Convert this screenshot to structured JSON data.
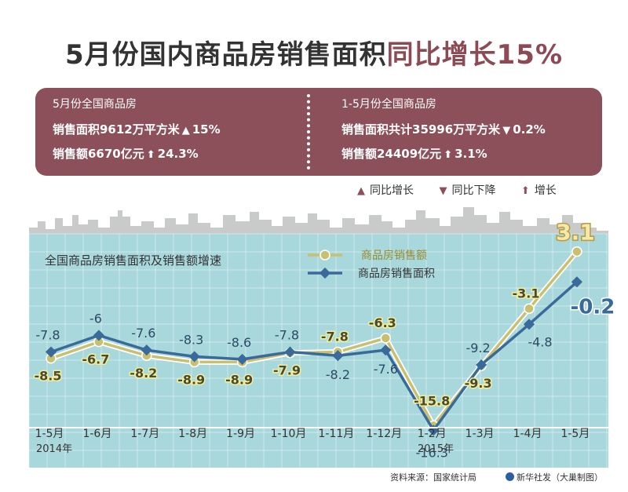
{
  "title": {
    "main": "5月份国内商品房销售面积",
    "highlight": "同比增长15%"
  },
  "stats": {
    "left": {
      "sub": "5月份全国商品房",
      "area_label": "销售面积9612万平方米",
      "area_change": "15%",
      "sales_label": "销售额6670亿元",
      "sales_change": "24.3%"
    },
    "right": {
      "sub": "1-5月份全国商品房",
      "area_label": "销售面积共计35996万平方米",
      "area_change": "0.2%",
      "sales_label": "销售额24409亿元",
      "sales_change": "3.1%"
    }
  },
  "legend_top": {
    "up": "同比增长",
    "down": "同比下降",
    "increase": "增长"
  },
  "chart_data": {
    "type": "line",
    "title": "全国商品房销售面积及销售额增速",
    "categories": [
      "1-5月",
      "1-6月",
      "1-7月",
      "1-8月",
      "1-9月",
      "1-10月",
      "1-11月",
      "1-12月",
      "1-2月",
      "1-3月",
      "1-4月",
      "1-5月"
    ],
    "year_labels": [
      "2014年",
      "2015年"
    ],
    "series": [
      {
        "name": "商品房销售额",
        "color": "#c8c070",
        "values": [
          -8.5,
          -6.7,
          -8.2,
          -8.9,
          -8.9,
          -7.9,
          -7.8,
          -6.3,
          -15.8,
          -9.3,
          -3.1,
          3.1
        ]
      },
      {
        "name": "商品房销售面积",
        "color": "#3a6a99",
        "values": [
          -7.8,
          -6.0,
          -7.6,
          -8.3,
          -8.6,
          -7.8,
          -8.2,
          -7.6,
          -16.3,
          -9.2,
          -4.8,
          -0.2
        ]
      }
    ],
    "ylim": [
      -19,
      4
    ]
  },
  "source": "资料来源：国家统计局",
  "agency": "新华社发（大巢制图）"
}
